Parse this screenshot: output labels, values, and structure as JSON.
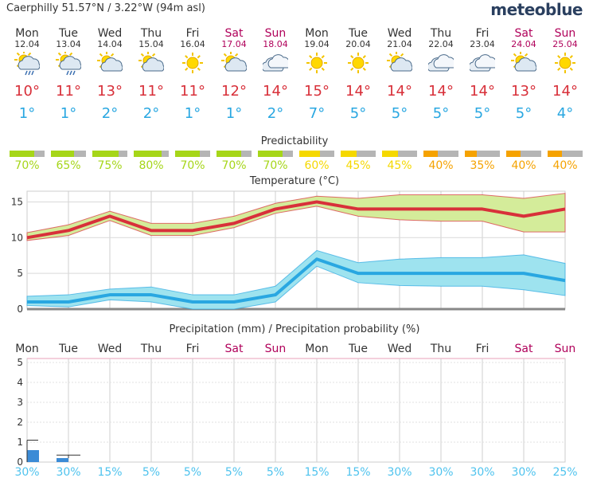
{
  "header": {
    "location": "Caerphilly  51.57°N / 3.22°W (94m asl)",
    "brand": "meteoblue"
  },
  "days": [
    {
      "name": "Mon",
      "date": "12.04",
      "weekend": false,
      "icon": "sun-cloud-rain-icon",
      "tmax": "10°",
      "tmin": "1°",
      "predictability": 70,
      "pred_label": "70%",
      "pred_color": "#a6d619",
      "precip_prob": "30%"
    },
    {
      "name": "Tue",
      "date": "13.04",
      "weekend": false,
      "icon": "sun-cloud-rain-icon",
      "tmax": "11°",
      "tmin": "1°",
      "predictability": 65,
      "pred_label": "65%",
      "pred_color": "#a6d619",
      "precip_prob": "30%"
    },
    {
      "name": "Wed",
      "date": "14.04",
      "weekend": false,
      "icon": "sun-cloud-icon",
      "tmax": "13°",
      "tmin": "2°",
      "predictability": 75,
      "pred_label": "75%",
      "pred_color": "#a6d619",
      "precip_prob": "15%"
    },
    {
      "name": "Thu",
      "date": "15.04",
      "weekend": false,
      "icon": "sun-cloud-icon",
      "tmax": "11°",
      "tmin": "2°",
      "predictability": 80,
      "pred_label": "80%",
      "pred_color": "#a6d619",
      "precip_prob": "5%"
    },
    {
      "name": "Fri",
      "date": "16.04",
      "weekend": false,
      "icon": "sun-icon",
      "tmax": "11°",
      "tmin": "1°",
      "predictability": 70,
      "pred_label": "70%",
      "pred_color": "#a6d619",
      "precip_prob": "5%"
    },
    {
      "name": "Sat",
      "date": "17.04",
      "weekend": true,
      "icon": "sun-cloud-icon",
      "tmax": "12°",
      "tmin": "1°",
      "predictability": 70,
      "pred_label": "70%",
      "pred_color": "#a6d619",
      "precip_prob": "5%"
    },
    {
      "name": "Sun",
      "date": "18.04",
      "weekend": true,
      "icon": "cloud-icon",
      "tmax": "14°",
      "tmin": "2°",
      "predictability": 70,
      "pred_label": "70%",
      "pred_color": "#a6d619",
      "precip_prob": "5%"
    },
    {
      "name": "Mon",
      "date": "19.04",
      "weekend": false,
      "icon": "sun-icon",
      "tmax": "15°",
      "tmin": "7°",
      "predictability": 60,
      "pred_label": "60%",
      "pred_color": "#f5d800",
      "precip_prob": "15%"
    },
    {
      "name": "Tue",
      "date": "20.04",
      "weekend": false,
      "icon": "sun-icon",
      "tmax": "14°",
      "tmin": "5°",
      "predictability": 45,
      "pred_label": "45%",
      "pred_color": "#f5d800",
      "precip_prob": "15%"
    },
    {
      "name": "Wed",
      "date": "21.04",
      "weekend": false,
      "icon": "sun-cloud-icon",
      "tmax": "14°",
      "tmin": "5°",
      "predictability": 45,
      "pred_label": "45%",
      "pred_color": "#f5d800",
      "precip_prob": "30%"
    },
    {
      "name": "Thu",
      "date": "22.04",
      "weekend": false,
      "icon": "cloud-icon",
      "tmax": "14°",
      "tmin": "5°",
      "predictability": 40,
      "pred_label": "40%",
      "pred_color": "#f5a200",
      "precip_prob": "30%"
    },
    {
      "name": "Fri",
      "date": "23.04",
      "weekend": false,
      "icon": "cloud-icon",
      "tmax": "14°",
      "tmin": "5°",
      "predictability": 35,
      "pred_label": "35%",
      "pred_color": "#f5a200",
      "precip_prob": "30%"
    },
    {
      "name": "Sat",
      "date": "24.04",
      "weekend": true,
      "icon": "sun-cloud-icon",
      "tmax": "13°",
      "tmin": "5°",
      "predictability": 40,
      "pred_label": "40%",
      "pred_color": "#f5a200",
      "precip_prob": "30%"
    },
    {
      "name": "Sun",
      "date": "25.04",
      "weekend": true,
      "icon": "sun-icon",
      "tmax": "14°",
      "tmin": "4°",
      "predictability": 40,
      "pred_label": "40%",
      "pred_color": "#f5a200",
      "precip_prob": "25%"
    }
  ],
  "predictability_title": "Predictability",
  "chart_data": [
    {
      "type": "line",
      "title": "Temperature (°C)",
      "categories": [
        "Mon",
        "Tue",
        "Wed",
        "Thu",
        "Fri",
        "Sat",
        "Sun",
        "Mon",
        "Tue",
        "Wed",
        "Thu",
        "Fri",
        "Sat",
        "Sun"
      ],
      "ylim": [
        0,
        16.5
      ],
      "yticks": [
        0,
        5,
        10,
        15
      ],
      "series": [
        {
          "key": "tmax",
          "color": "#d8303a",
          "values": [
            10,
            11,
            13,
            11,
            11,
            12,
            14,
            15,
            14,
            14,
            14,
            14,
            13,
            14
          ],
          "upper": [
            10.7,
            11.8,
            13.7,
            12,
            12,
            13,
            14.8,
            15.8,
            15.5,
            16,
            16,
            16,
            15.5,
            16.2
          ],
          "lower": [
            9.6,
            10.3,
            12.4,
            10.3,
            10.3,
            11.4,
            13.4,
            14.4,
            13,
            12.5,
            12.3,
            12.3,
            10.8,
            10.8
          ]
        },
        {
          "key": "tmin",
          "color": "#29a7e1",
          "values": [
            1,
            1,
            2,
            2,
            1,
            1,
            2,
            7,
            5,
            5,
            5,
            5,
            5,
            4
          ],
          "upper": [
            1.8,
            2,
            2.8,
            3.1,
            2,
            2,
            3.2,
            8.2,
            6.5,
            7,
            7.2,
            7.2,
            7.6,
            6.4
          ],
          "lower": [
            0.5,
            0.3,
            1.3,
            1,
            0,
            0,
            1,
            6,
            3.7,
            3.3,
            3.2,
            3.2,
            2.7,
            1.9
          ]
        }
      ]
    },
    {
      "type": "bar",
      "title": "Precipitation (mm) / Precipitation probability (%)",
      "categories": [
        "Mon",
        "Tue",
        "Wed",
        "Thu",
        "Fri",
        "Sat",
        "Sun",
        "Mon",
        "Tue",
        "Wed",
        "Thu",
        "Fri",
        "Sat",
        "Sun"
      ],
      "ylim": [
        0,
        5.2
      ],
      "yticks": [
        0,
        1,
        2,
        3,
        4,
        5
      ],
      "values": [
        0.6,
        0.2,
        0,
        0,
        0,
        0,
        0,
        0,
        0,
        0,
        0,
        0,
        0,
        0
      ],
      "range_max": [
        1.1,
        0.35,
        0,
        0,
        0,
        0,
        0,
        0,
        0,
        0,
        0,
        0,
        0,
        0
      ],
      "probability": [
        "30%",
        "30%",
        "15%",
        "5%",
        "5%",
        "5%",
        "5%",
        "15%",
        "15%",
        "30%",
        "30%",
        "30%",
        "30%",
        "25%"
      ],
      "bar_color": "#3b8bd6"
    }
  ]
}
